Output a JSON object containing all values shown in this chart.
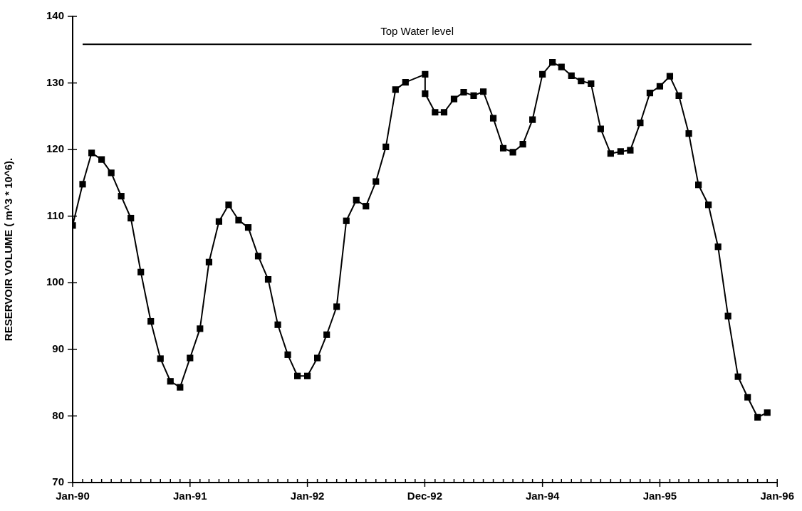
{
  "chart_data": {
    "type": "line",
    "ylabel": "RESERVOIR VOLUME ( m^3 * 10^6).",
    "marker": "square",
    "line_style": "solid",
    "grid": false,
    "legend": false,
    "x": [
      "1990-01",
      "1990-02",
      "1990-03",
      "1990-04",
      "1990-05",
      "1990-06",
      "1990-07",
      "1990-08",
      "1990-09",
      "1990-10",
      "1990-11",
      "1990-12",
      "1991-01",
      "1991-02",
      "1991-03",
      "1991-04",
      "1991-05",
      "1991-06",
      "1991-07",
      "1991-08",
      "1991-09",
      "1991-10",
      "1991-11",
      "1991-12",
      "1992-01",
      "1992-02",
      "1992-03",
      "1992-04",
      "1992-05",
      "1992-06",
      "1992-07",
      "1992-08",
      "1992-09",
      "1992-10",
      "1992-11",
      "1993-01",
      "1993-01",
      "1993-02",
      "1993-03",
      "1993-04",
      "1993-05",
      "1993-06",
      "1993-07",
      "1993-08",
      "1993-09",
      "1993-10",
      "1993-11",
      "1993-12",
      "1994-01",
      "1994-02",
      "1994-03",
      "1994-04",
      "1994-05",
      "1994-06",
      "1994-07",
      "1994-08",
      "1994-09",
      "1994-10",
      "1994-11",
      "1994-12",
      "1995-01",
      "1995-02",
      "1995-03",
      "1995-04",
      "1995-05",
      "1995-06",
      "1995-07",
      "1995-08",
      "1995-09",
      "1995-10",
      "1995-11",
      "1995-12"
    ],
    "series": [
      {
        "color": "#000000",
        "values": [
          108.6,
          114.8,
          119.5,
          118.5,
          116.5,
          113.0,
          109.7,
          101.6,
          94.2,
          88.6,
          85.2,
          84.3,
          88.7,
          93.1,
          103.1,
          109.2,
          111.7,
          109.4,
          108.3,
          104.0,
          100.5,
          93.7,
          89.2,
          86.0,
          86.0,
          88.7,
          92.2,
          96.4,
          109.3,
          112.4,
          111.5,
          115.2,
          120.4,
          129.0,
          130.1,
          131.3,
          128.4,
          125.6,
          125.6,
          127.6,
          128.6,
          128.1,
          128.7,
          124.7,
          120.2,
          119.6,
          120.8,
          124.5,
          131.3,
          133.1,
          132.4,
          131.1,
          130.3,
          129.9,
          123.1,
          119.4,
          119.7,
          119.9,
          124.0,
          128.5,
          129.5,
          131.0,
          128.1,
          122.4,
          114.7,
          111.7,
          105.4,
          95.0,
          85.9,
          82.8,
          79.8,
          80.5
        ]
      }
    ],
    "xlim": [
      "1990-01-01",
      "1996-01-01"
    ],
    "xticks": [
      {
        "value": "1990-01-01",
        "label": "Jan-90"
      },
      {
        "value": "1990-02",
        "label": null
      },
      {
        "value": "1990-03",
        "label": null
      },
      {
        "value": "1990-04",
        "label": null
      },
      {
        "value": "1990-05",
        "label": null
      },
      {
        "value": "1990-06",
        "label": null
      },
      {
        "value": "1990-07",
        "label": null
      },
      {
        "value": "1990-08",
        "label": null
      },
      {
        "value": "1990-09",
        "label": null
      },
      {
        "value": "1990-10",
        "label": null
      },
      {
        "value": "1990-11",
        "label": null
      },
      {
        "value": "1990-12",
        "label": null
      },
      {
        "value": "1991-01-01",
        "label": "Jan-91"
      },
      {
        "value": "1991-02",
        "label": null
      },
      {
        "value": "1991-03",
        "label": null
      },
      {
        "value": "1991-04",
        "label": null
      },
      {
        "value": "1991-05",
        "label": null
      },
      {
        "value": "1991-06",
        "label": null
      },
      {
        "value": "1991-07",
        "label": null
      },
      {
        "value": "1991-08",
        "label": null
      },
      {
        "value": "1991-09",
        "label": null
      },
      {
        "value": "1991-10",
        "label": null
      },
      {
        "value": "1991-11",
        "label": null
      },
      {
        "value": "1991-12",
        "label": null
      },
      {
        "value": "1992-01-01",
        "label": "Jan-92"
      },
      {
        "value": "1992-02",
        "label": null
      },
      {
        "value": "1992-03",
        "label": null
      },
      {
        "value": "1992-04",
        "label": null
      },
      {
        "value": "1992-05",
        "label": null
      },
      {
        "value": "1992-06",
        "label": null
      },
      {
        "value": "1992-07",
        "label": null
      },
      {
        "value": "1992-08",
        "label": null
      },
      {
        "value": "1992-09",
        "label": null
      },
      {
        "value": "1992-10",
        "label": null
      },
      {
        "value": "1992-11",
        "label": null
      },
      {
        "value": "1992-12",
        "label": null
      },
      {
        "value": "1992-12-31",
        "label": "Dec-92"
      },
      {
        "value": "1993-02",
        "label": null
      },
      {
        "value": "1993-03",
        "label": null
      },
      {
        "value": "1993-04",
        "label": null
      },
      {
        "value": "1993-05",
        "label": null
      },
      {
        "value": "1993-06",
        "label": null
      },
      {
        "value": "1993-07",
        "label": null
      },
      {
        "value": "1993-08",
        "label": null
      },
      {
        "value": "1993-09",
        "label": null
      },
      {
        "value": "1993-10",
        "label": null
      },
      {
        "value": "1993-11",
        "label": null
      },
      {
        "value": "1993-12",
        "label": null
      },
      {
        "value": "1994-01-01",
        "label": "Jan-94"
      },
      {
        "value": "1994-02",
        "label": null
      },
      {
        "value": "1994-03",
        "label": null
      },
      {
        "value": "1994-04",
        "label": null
      },
      {
        "value": "1994-05",
        "label": null
      },
      {
        "value": "1994-06",
        "label": null
      },
      {
        "value": "1994-07",
        "label": null
      },
      {
        "value": "1994-08",
        "label": null
      },
      {
        "value": "1994-09",
        "label": null
      },
      {
        "value": "1994-10",
        "label": null
      },
      {
        "value": "1994-11",
        "label": null
      },
      {
        "value": "1994-12",
        "label": null
      },
      {
        "value": "1995-01-01",
        "label": "Jan-95"
      },
      {
        "value": "1995-02",
        "label": null
      },
      {
        "value": "1995-03",
        "label": null
      },
      {
        "value": "1995-04",
        "label": null
      },
      {
        "value": "1995-05",
        "label": null
      },
      {
        "value": "1995-06",
        "label": null
      },
      {
        "value": "1995-07",
        "label": null
      },
      {
        "value": "1995-08",
        "label": null
      },
      {
        "value": "1995-09",
        "label": null
      },
      {
        "value": "1995-10",
        "label": null
      },
      {
        "value": "1995-11",
        "label": null
      },
      {
        "value": "1995-12",
        "label": null
      },
      {
        "value": "1996-01-01",
        "label": "Jan-96"
      }
    ],
    "ylim": [
      70,
      140
    ],
    "yticks": [
      70,
      80,
      90,
      100,
      110,
      120,
      130,
      140
    ],
    "ref_lines": [
      {
        "axis": "y",
        "value": 135.8,
        "label": "Top Water level"
      }
    ]
  }
}
